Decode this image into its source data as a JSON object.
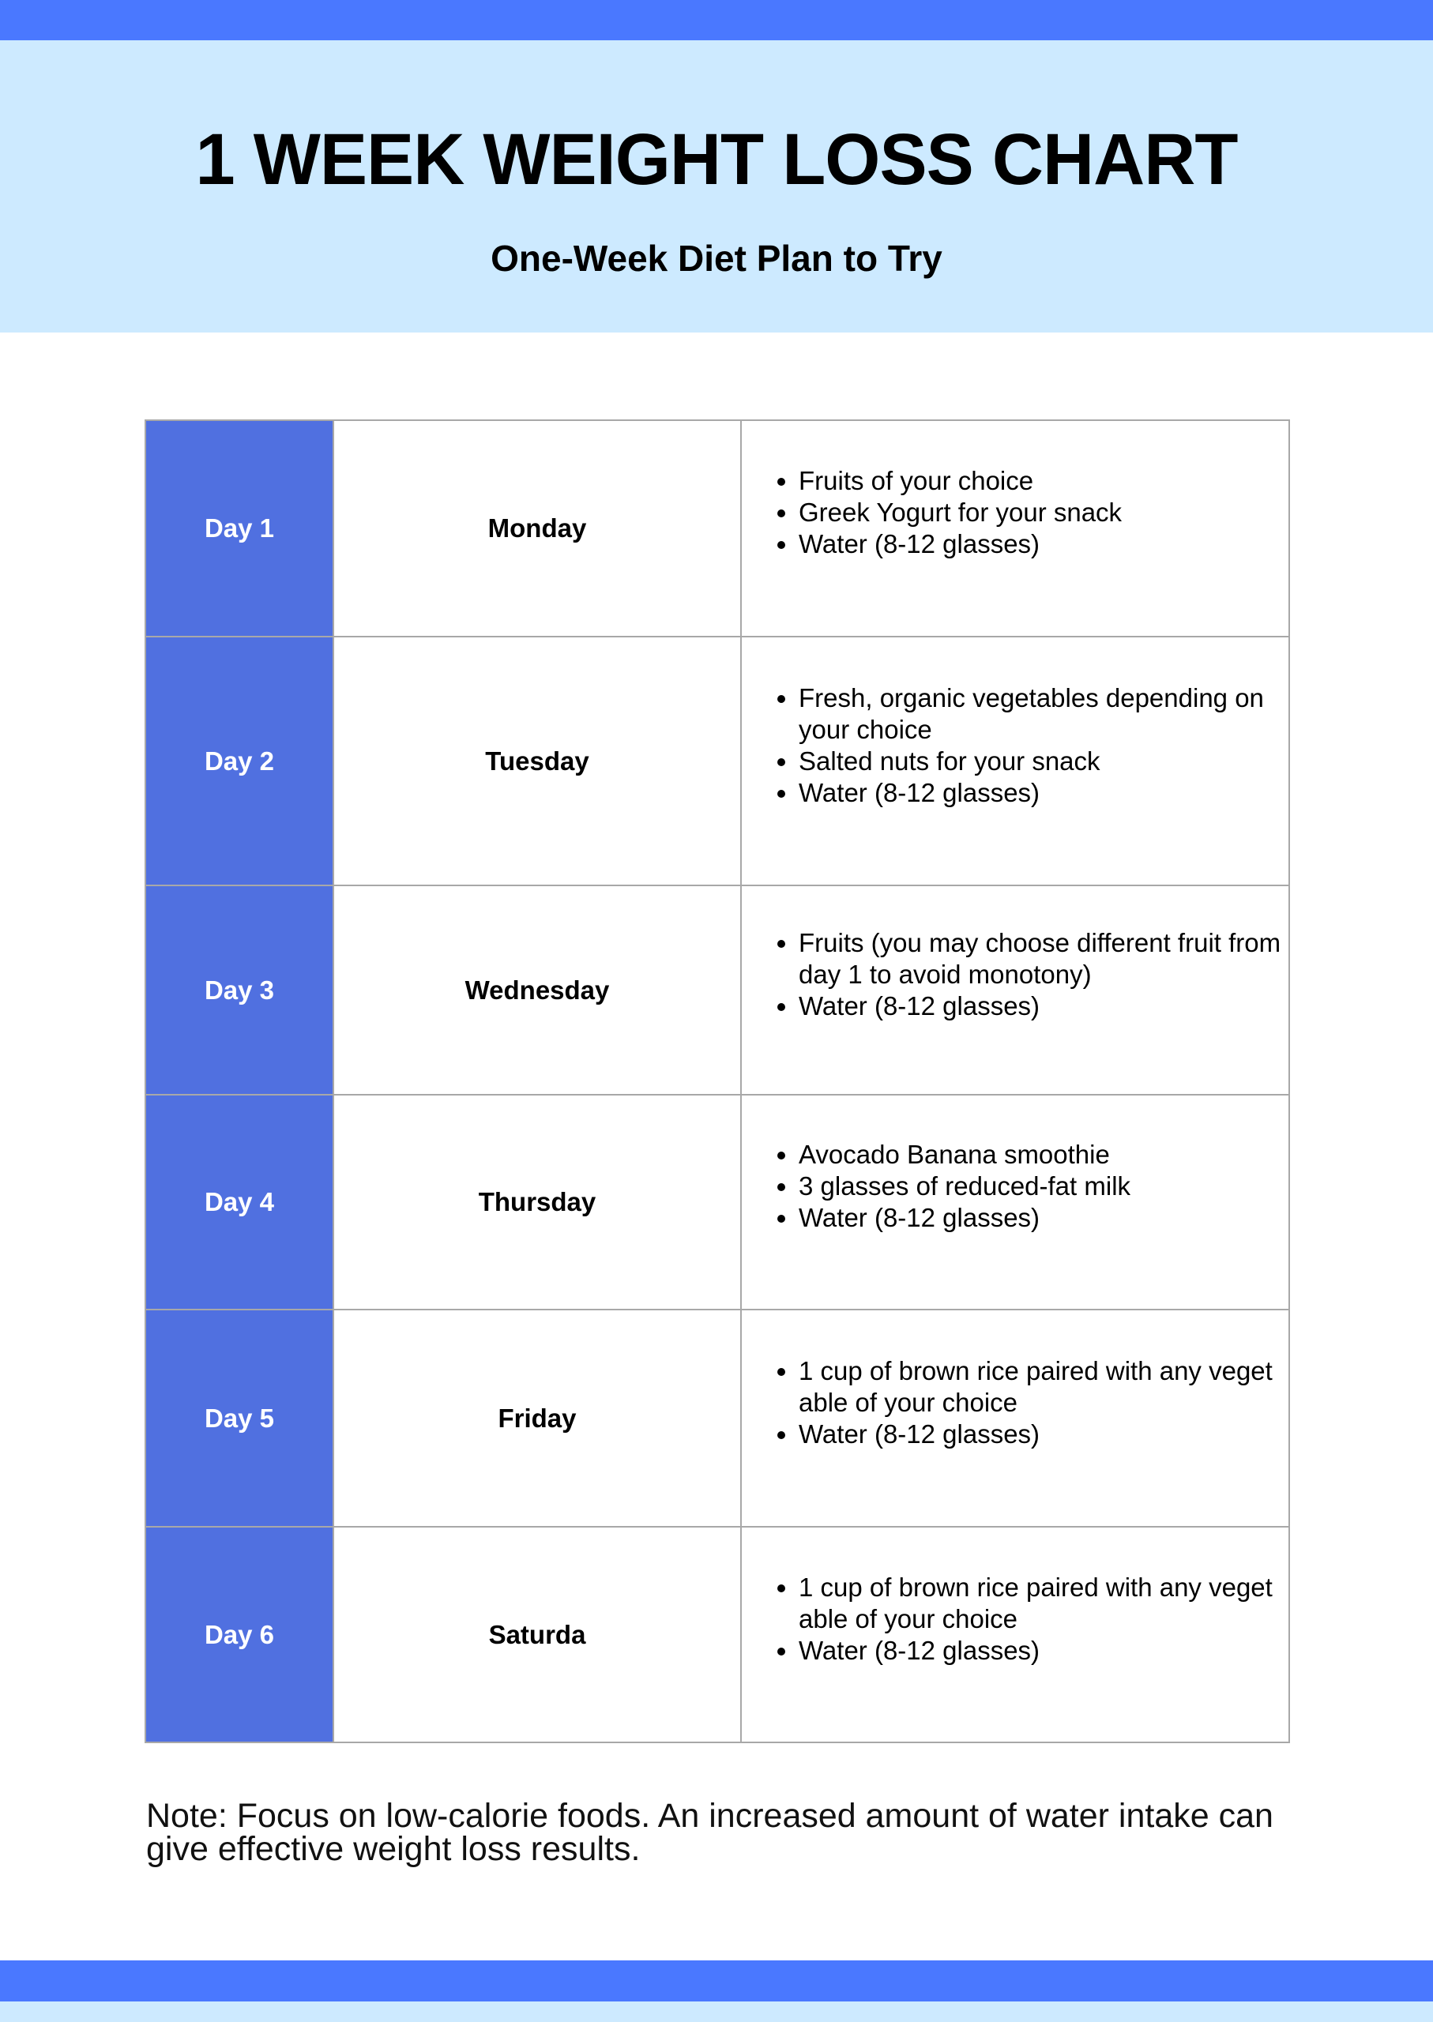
{
  "colors": {
    "bar": "#4a78ff",
    "header_bg": "#cdeaff",
    "day_cell": "#5070e0"
  },
  "header": {
    "title": "1 WEEK WEIGHT LOSS CHART",
    "subtitle": "One-Week Diet Plan to Try"
  },
  "rows": [
    {
      "day": "Day 1",
      "weekday": "Monday",
      "items": [
        "Fruits of your choice",
        "Greek Yogurt for your snack",
        "Water (8-12 glasses)"
      ]
    },
    {
      "day": "Day 2",
      "weekday": "Tuesday",
      "items": [
        "Fresh, organic vegetables depending on your choice",
        "Salted nuts for your snack",
        "Water (8-12 glasses)"
      ]
    },
    {
      "day": "Day 3",
      "weekday": "Wednesday",
      "items": [
        "Fruits (you may choose different fruit from day 1 to avoid monotony)",
        "Water (8-12 glasses)"
      ]
    },
    {
      "day": "Day 4",
      "weekday": "Thursday",
      "items": [
        "Avocado Banana smoothie",
        "3 glasses of reduced-fat milk",
        "Water (8-12 glasses)"
      ]
    },
    {
      "day": "Day 5",
      "weekday": "Friday",
      "items": [
        "1 cup of brown rice paired with any veget able of your choice",
        "Water (8-12 glasses)"
      ]
    },
    {
      "day": "Day 6",
      "weekday": "Saturda",
      "items": [
        "1 cup of brown rice paired with any veget able of your choice",
        "Water (8-12 glasses)"
      ]
    }
  ],
  "note": "Note: Focus on low-calorie foods. An increased amount of water intake can give effective weight loss results."
}
